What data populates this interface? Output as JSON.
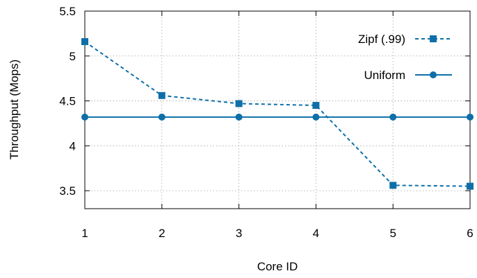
{
  "chart_data": {
    "type": "line",
    "xlabel": "Core ID",
    "ylabel": "Throughput (Mops)",
    "xlim": [
      1,
      6
    ],
    "ylim": [
      3.3,
      5.5
    ],
    "x_ticks": [
      "1",
      "2",
      "3",
      "4",
      "5",
      "6"
    ],
    "y_ticks": [
      "3.5",
      "4",
      "4.5",
      "5",
      "5.5"
    ],
    "grid": true,
    "legend_position": "top-right",
    "x": [
      1,
      2,
      3,
      4,
      5,
      6
    ],
    "series": [
      {
        "name": "Zipf (.99)",
        "values": [
          5.16,
          4.56,
          4.47,
          4.45,
          3.56,
          3.55
        ],
        "color": "#0e6fa8",
        "line_style": "dashed",
        "marker": "square"
      },
      {
        "name": "Uniform",
        "values": [
          4.32,
          4.32,
          4.32,
          4.32,
          4.32,
          4.32
        ],
        "color": "#0e6fa8",
        "line_style": "solid",
        "marker": "circle"
      }
    ]
  }
}
